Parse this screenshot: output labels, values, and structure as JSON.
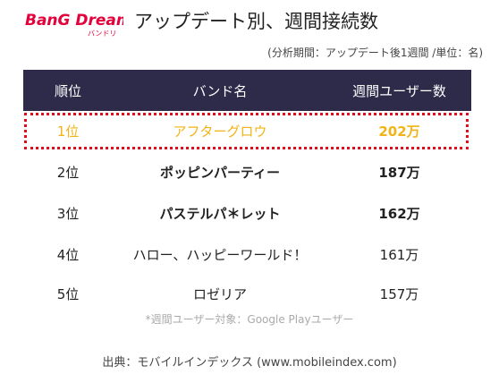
{
  "logo": {
    "main": "BanG Dream!",
    "sub": "バンドリ"
  },
  "title": "アップデート別、週間接続数",
  "note": "(分析期間：アップデート後1週間 /単位：名)",
  "table": {
    "headers": [
      "順位",
      "バンド名",
      "週間ユーザー数"
    ],
    "rows": [
      {
        "rank": "1位",
        "band": "アフターグロウ",
        "users": "202万"
      },
      {
        "rank": "2位",
        "band": "ポッピンパーティー",
        "users": "187万"
      },
      {
        "rank": "3位",
        "band": "パステルパ＊レット",
        "users": "162万"
      },
      {
        "rank": "4位",
        "band": "ハロー、ハッピーワールド！",
        "users": "161万"
      },
      {
        "rank": "5位",
        "band": "ロゼリア",
        "users": "157万"
      }
    ]
  },
  "footnote": "*週間ユーザー対象：Google Playユーザー",
  "source": "出典：モバイルインデックス (www.mobileindex.com)",
  "colors": {
    "header_bg": "#2d2a4a",
    "highlight_text": "#f2b414",
    "highlight_border": "#e00c1a",
    "logo_red": "#e4003a"
  }
}
